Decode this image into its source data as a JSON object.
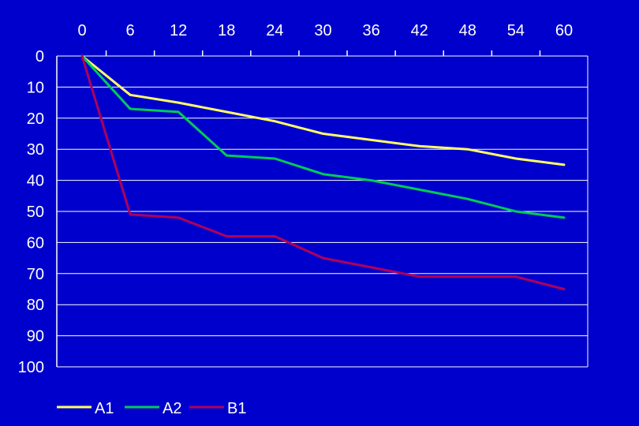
{
  "colors": {
    "background": "#0000CC",
    "grid": "#FFFFFF",
    "text": "#FFFFFF"
  },
  "chart_data": {
    "type": "line",
    "title": "",
    "xlabel": "",
    "ylabel": "",
    "x": [
      0,
      6,
      12,
      18,
      24,
      30,
      36,
      42,
      48,
      54,
      60
    ],
    "x_ticks": [
      "0",
      "6",
      "12",
      "18",
      "24",
      "30",
      "36",
      "42",
      "48",
      "54",
      "60"
    ],
    "x_axis_position": "top",
    "xlim": [
      0,
      60
    ],
    "y_ticks": [
      "0",
      "10",
      "20",
      "30",
      "40",
      "50",
      "60",
      "70",
      "80",
      "90",
      "100"
    ],
    "y_inverted": true,
    "ylim": [
      0,
      100
    ],
    "grid": "horizontal",
    "legend_position": "bottom-left",
    "series": [
      {
        "name": "A1",
        "color": "#FFFF66",
        "values": [
          0,
          12.5,
          15,
          18,
          21,
          25,
          27,
          29,
          30,
          33,
          35
        ]
      },
      {
        "name": "A2",
        "color": "#00CC55",
        "values": [
          0,
          17,
          18,
          32,
          33,
          38,
          40,
          43,
          46,
          50,
          52
        ]
      },
      {
        "name": "B1",
        "color": "#B0005A",
        "values": [
          0,
          51,
          52,
          58,
          58,
          65,
          68,
          71,
          71,
          71,
          75
        ]
      }
    ]
  }
}
